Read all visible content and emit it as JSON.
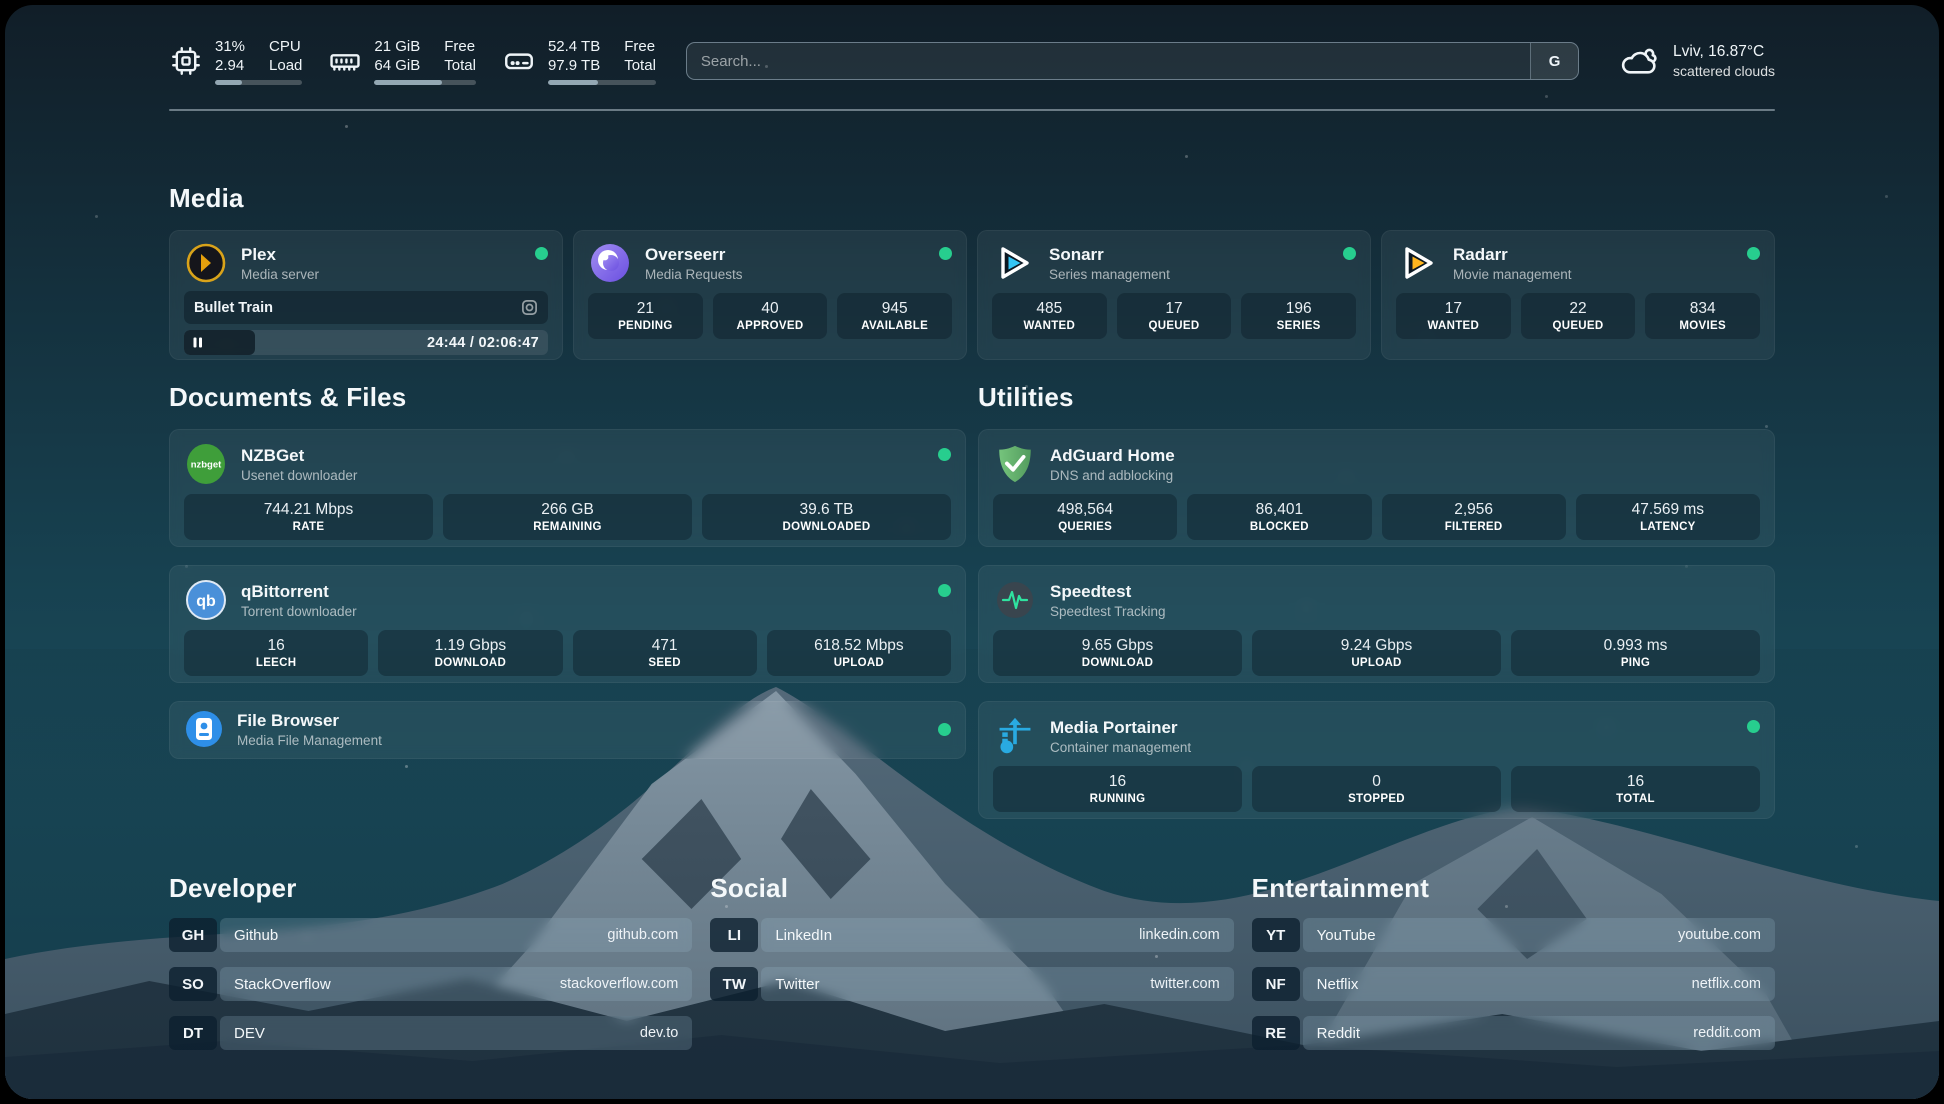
{
  "topbar": {
    "cpu": {
      "values": [
        "31%",
        "2.94"
      ],
      "labels": [
        "CPU",
        "Load"
      ],
      "progress": 31
    },
    "ram": {
      "values": [
        "21 GiB",
        "64 GiB"
      ],
      "labels": [
        "Free",
        "Total"
      ],
      "progress": 67
    },
    "disk": {
      "values": [
        "52.4 TB",
        "97.9 TB"
      ],
      "labels": [
        "Free",
        "Total"
      ],
      "progress": 46
    },
    "search": {
      "placeholder": "Search...",
      "button_label": "G"
    },
    "weather": {
      "location_temp": "Lviv, 16.87°C",
      "condition": "scattered clouds"
    }
  },
  "media": {
    "title": "Media",
    "plex": {
      "name": "Plex",
      "subtitle": "Media server",
      "now_playing": "Bullet Train",
      "time": "24:44 / 02:06:47",
      "progress_percent": 19.5
    },
    "overseerr": {
      "name": "Overseerr",
      "subtitle": "Media Requests",
      "stats": [
        {
          "value": "21",
          "label": "PENDING"
        },
        {
          "value": "40",
          "label": "APPROVED"
        },
        {
          "value": "945",
          "label": "AVAILABLE"
        }
      ]
    },
    "sonarr": {
      "name": "Sonarr",
      "subtitle": "Series management",
      "stats": [
        {
          "value": "485",
          "label": "WANTED"
        },
        {
          "value": "17",
          "label": "QUEUED"
        },
        {
          "value": "196",
          "label": "SERIES"
        }
      ]
    },
    "radarr": {
      "name": "Radarr",
      "subtitle": "Movie management",
      "stats": [
        {
          "value": "17",
          "label": "WANTED"
        },
        {
          "value": "22",
          "label": "QUEUED"
        },
        {
          "value": "834",
          "label": "MOVIES"
        }
      ]
    }
  },
  "documents": {
    "title": "Documents & Files",
    "nzbget": {
      "name": "NZBGet",
      "subtitle": "Usenet downloader",
      "stats": [
        {
          "value": "744.21 Mbps",
          "label": "RATE"
        },
        {
          "value": "266 GB",
          "label": "REMAINING"
        },
        {
          "value": "39.6 TB",
          "label": "DOWNLOADED"
        }
      ]
    },
    "qbittorrent": {
      "name": "qBittorrent",
      "subtitle": "Torrent downloader",
      "stats": [
        {
          "value": "16",
          "label": "LEECH"
        },
        {
          "value": "1.19 Gbps",
          "label": "DOWNLOAD"
        },
        {
          "value": "471",
          "label": "SEED"
        },
        {
          "value": "618.52 Mbps",
          "label": "UPLOAD"
        }
      ]
    },
    "filebrowser": {
      "name": "File Browser",
      "subtitle": "Media File Management"
    }
  },
  "utilities": {
    "title": "Utilities",
    "adguard": {
      "name": "AdGuard Home",
      "subtitle": "DNS and adblocking",
      "stats": [
        {
          "value": "498,564",
          "label": "QUERIES"
        },
        {
          "value": "86,401",
          "label": "BLOCKED"
        },
        {
          "value": "2,956",
          "label": "FILTERED"
        },
        {
          "value": "47.569 ms",
          "label": "LATENCY"
        }
      ]
    },
    "speedtest": {
      "name": "Speedtest",
      "subtitle": "Speedtest Tracking",
      "stats": [
        {
          "value": "9.65 Gbps",
          "label": "DOWNLOAD"
        },
        {
          "value": "9.24 Gbps",
          "label": "UPLOAD"
        },
        {
          "value": "0.993 ms",
          "label": "PING"
        }
      ]
    },
    "portainer": {
      "name": "Media Portainer",
      "subtitle": "Container management",
      "stats": [
        {
          "value": "16",
          "label": "RUNNING"
        },
        {
          "value": "0",
          "label": "STOPPED"
        },
        {
          "value": "16",
          "label": "TOTAL"
        }
      ]
    }
  },
  "bookmarks": {
    "developer": {
      "title": "Developer",
      "items": [
        {
          "abbr": "GH",
          "name": "Github",
          "url": "github.com"
        },
        {
          "abbr": "SO",
          "name": "StackOverflow",
          "url": "stackoverflow.com"
        },
        {
          "abbr": "DT",
          "name": "DEV",
          "url": "dev.to"
        }
      ]
    },
    "social": {
      "title": "Social",
      "items": [
        {
          "abbr": "LI",
          "name": "LinkedIn",
          "url": "linkedin.com"
        },
        {
          "abbr": "TW",
          "name": "Twitter",
          "url": "twitter.com"
        }
      ]
    },
    "entertainment": {
      "title": "Entertainment",
      "items": [
        {
          "abbr": "YT",
          "name": "YouTube",
          "url": "youtube.com"
        },
        {
          "abbr": "NF",
          "name": "Netflix",
          "url": "netflix.com"
        },
        {
          "abbr": "RE",
          "name": "Reddit",
          "url": "reddit.com"
        }
      ]
    }
  },
  "colors": {
    "status_ok": "#27ce8e",
    "plex_gold": "#e5a00d",
    "sonarr_blue": "#35c5f4",
    "radarr_orange": "#ffb51e",
    "adguard_green": "#67bb6c",
    "portainer_blue": "#29aae1"
  }
}
